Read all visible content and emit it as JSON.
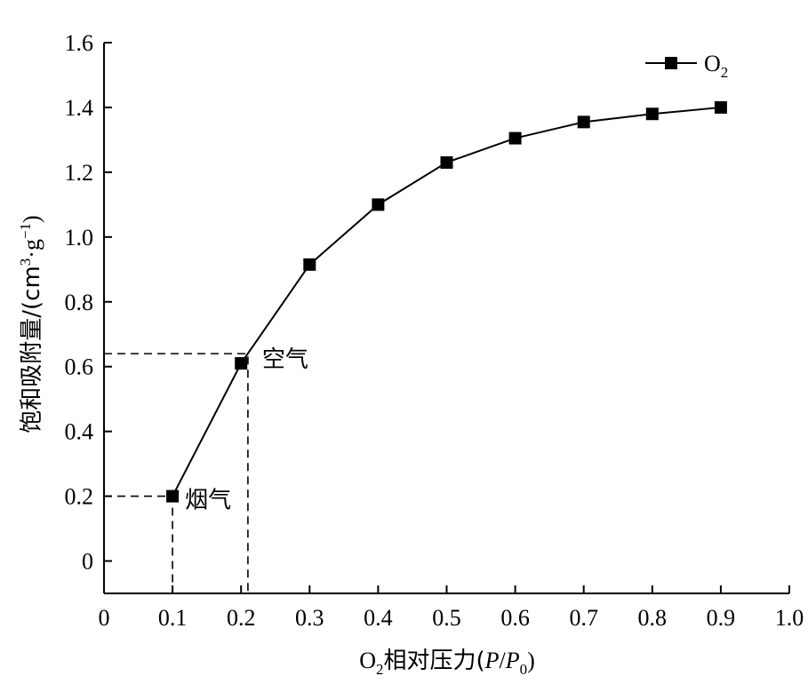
{
  "chart_data": {
    "type": "line",
    "xlabel": {
      "base": "O",
      "sub": "2",
      "text": "相对压力(",
      "var1": "P",
      "slash": "/",
      "var2": "P",
      "var2_sub": "0",
      "close": ")"
    },
    "ylabel": {
      "text": "饱和吸附量/(cm",
      "sup1": "3",
      "mid": "·g",
      "sup2": "−1",
      "close": ")"
    },
    "xlim": [
      0,
      1.0
    ],
    "ylim": [
      -0.1,
      1.6
    ],
    "xticks": [
      0,
      0.1,
      0.2,
      0.3,
      0.4,
      0.5,
      0.6,
      0.7,
      0.8,
      0.9,
      1.0
    ],
    "xtick_labels": [
      "0",
      "0.1",
      "0.2",
      "0.3",
      "0.4",
      "0.5",
      "0.6",
      "0.7",
      "0.8",
      "0.9",
      "1.0"
    ],
    "yticks": [
      0,
      0.2,
      0.4,
      0.6,
      0.8,
      1.0,
      1.2,
      1.4,
      1.6
    ],
    "ytick_labels": [
      "0",
      "0.2",
      "0.4",
      "0.6",
      "0.8",
      "1.0",
      "1.2",
      "1.4",
      "1.6"
    ],
    "series": [
      {
        "name": "O2",
        "name_base": "O",
        "name_sub": "2",
        "x": [
          0.1,
          0.2,
          0.3,
          0.4,
          0.5,
          0.6,
          0.7,
          0.8,
          0.9
        ],
        "y": [
          0.2,
          0.61,
          0.915,
          1.1,
          1.23,
          1.305,
          1.355,
          1.38,
          1.4
        ],
        "color": "#000000",
        "marker": "square"
      }
    ],
    "annotations": [
      {
        "text": "烟气",
        "x": 0.1,
        "y": 0.2
      },
      {
        "text": "空气",
        "x": 0.21,
        "y": 0.64
      }
    ],
    "grid": false,
    "legend": "top-right"
  }
}
